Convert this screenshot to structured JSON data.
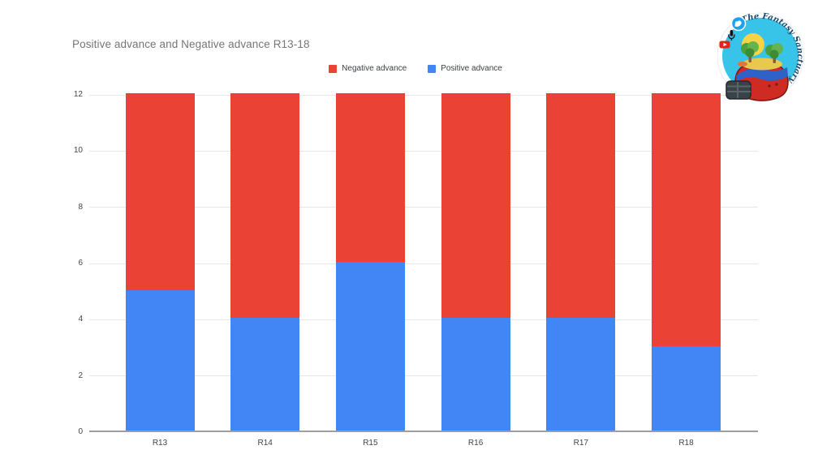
{
  "title": "Positive advance and Negative advance R13-18",
  "legend": [
    {
      "label": "Negative advance",
      "color": "#EA4335"
    },
    {
      "label": "Positive advance",
      "color": "#4285F4"
    }
  ],
  "chart_data": {
    "type": "bar",
    "stacked": true,
    "title": "Positive advance and Negative advance R13-18",
    "categories": [
      "R13",
      "R14",
      "R15",
      "R16",
      "R17",
      "R18"
    ],
    "series": [
      {
        "name": "Positive advance",
        "color": "#4285F4",
        "values": [
          5,
          4,
          6,
          4,
          4,
          3
        ]
      },
      {
        "name": "Negative advance",
        "color": "#EA4335",
        "values": [
          7,
          8,
          6,
          8,
          8,
          9
        ]
      }
    ],
    "xlabel": "",
    "ylabel": "",
    "ylim": [
      0,
      12
    ],
    "yticks": [
      0,
      2,
      4,
      6,
      8,
      10,
      12
    ],
    "grid": true,
    "legend_position": "top",
    "legend_order": [
      "Negative advance",
      "Positive advance"
    ]
  },
  "logo": {
    "name": "The Fantasy Sanctuary",
    "icons": [
      "twitter-icon",
      "microphone-icon",
      "youtube-icon"
    ],
    "badge_color": "#38C4E8",
    "helmet_color": "#CE2B22"
  }
}
